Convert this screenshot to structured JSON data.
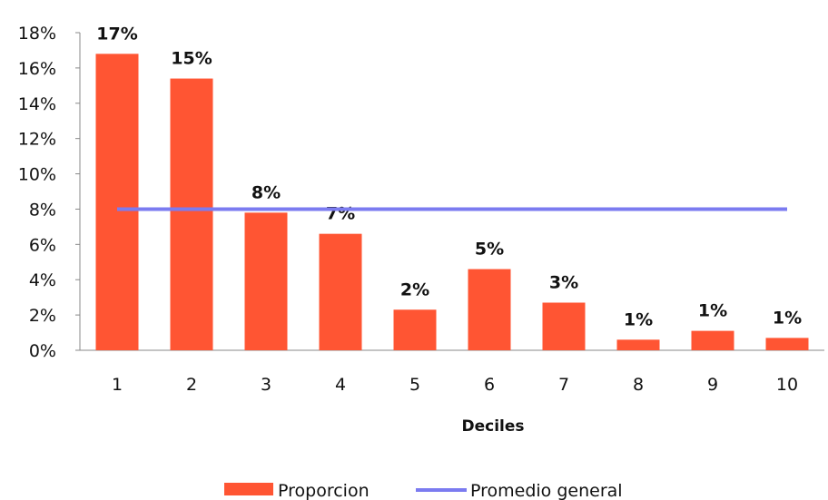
{
  "chart_data": {
    "type": "bar",
    "categories": [
      "1",
      "2",
      "3",
      "4",
      "5",
      "6",
      "7",
      "8",
      "9",
      "10"
    ],
    "series": [
      {
        "name": "Proporcion",
        "type": "bar",
        "color": "#ff5533",
        "values": [
          16.8,
          15.4,
          7.8,
          6.6,
          2.3,
          4.6,
          2.7,
          0.6,
          1.1,
          0.7
        ],
        "labels": [
          "17%",
          "15%",
          "8%",
          "7%",
          "2%",
          "5%",
          "3%",
          "1%",
          "1%",
          "1%"
        ]
      },
      {
        "name": "Promedio general",
        "type": "line",
        "color": "#7b7bf0",
        "values": [
          8,
          8,
          8,
          8,
          8,
          8,
          8,
          8,
          8,
          8
        ]
      }
    ],
    "xlabel": "Deciles",
    "ylabel": "",
    "ylim": [
      0,
      18
    ],
    "yticks": [
      "0%",
      "2%",
      "4%",
      "6%",
      "8%",
      "10%",
      "12%",
      "14%",
      "16%",
      "18%"
    ],
    "grid": false,
    "legend": "bottom"
  }
}
